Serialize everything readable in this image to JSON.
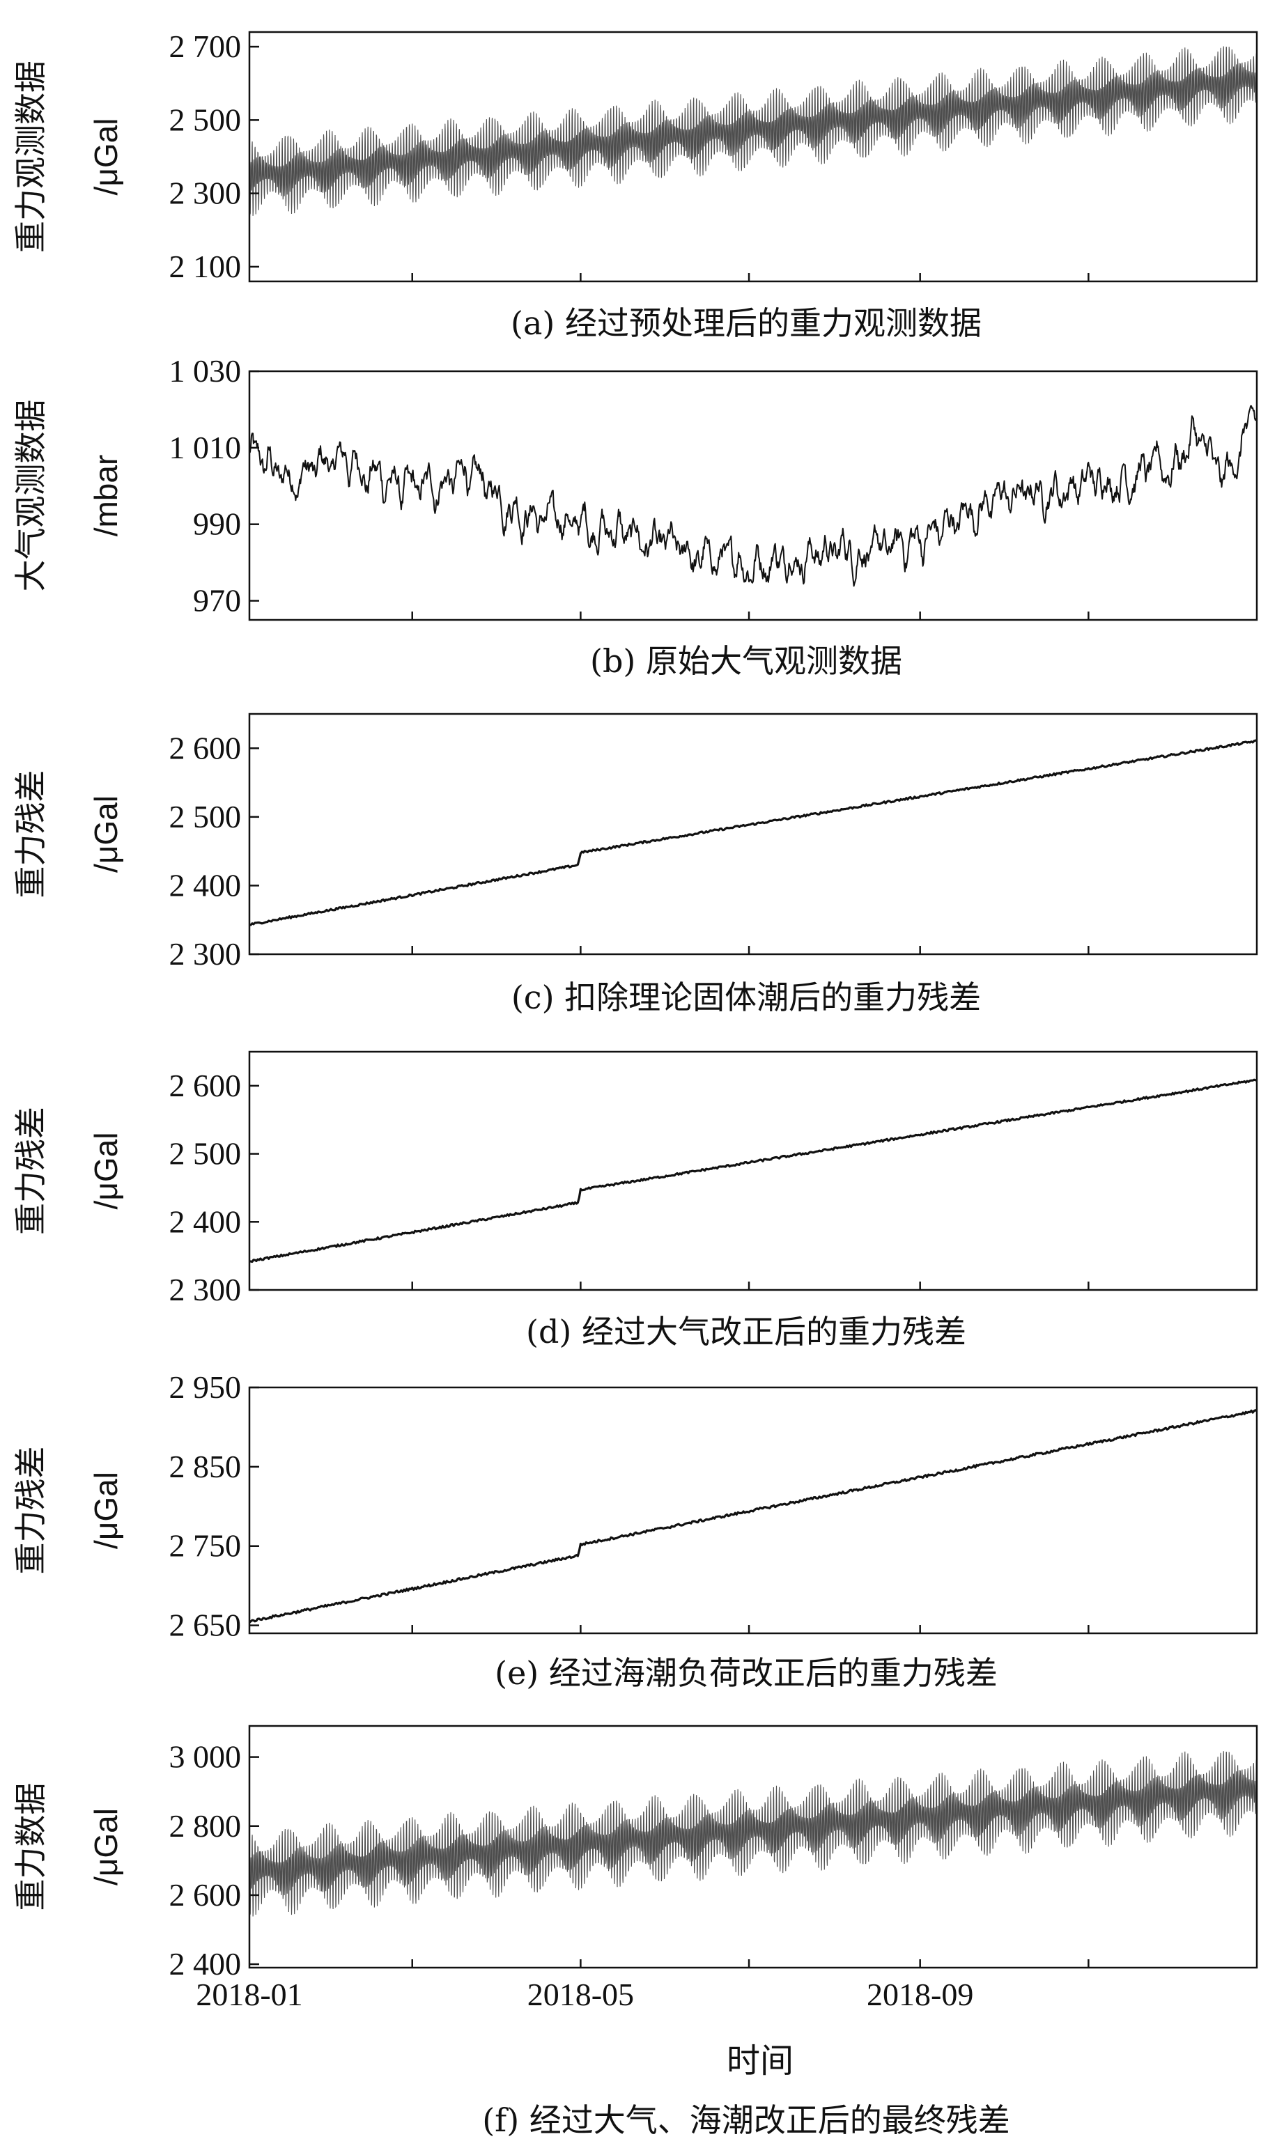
{
  "chart_data": [
    {
      "id": "a",
      "type": "line",
      "caption": "(a) 经过预处理后的重力观测数据",
      "ylabel": "重力观测数据",
      "yunit": "/μGal",
      "ylim": [
        2060,
        2740
      ],
      "yticks": [
        2100,
        2300,
        2500,
        2700
      ],
      "ytick_labels": [
        "2 100",
        "2 300",
        "2 500",
        "2 700"
      ],
      "xlim": [
        "2018-01-01",
        "2019-01-01"
      ],
      "signal": "tidal",
      "series": [
        {
          "x": [
            "2018-01-01",
            "2018-05-01",
            "2018-09-01",
            "2018-12-31"
          ],
          "values": [
            2360,
            2440,
            2530,
            2620
          ]
        }
      ],
      "tidal_amplitude_range": [
        60,
        120
      ],
      "tidal_fortnight_modulation": true
    },
    {
      "id": "b",
      "type": "line",
      "caption": "(b) 原始大气观测数据",
      "ylabel": "大气观测数据",
      "yunit": "/mbar",
      "ylim": [
        965,
        1030
      ],
      "yticks": [
        970,
        990,
        1010,
        1030
      ],
      "ytick_labels": [
        "970",
        "990",
        "1 010",
        "1 030"
      ],
      "xlim": [
        "2018-01-01",
        "2019-01-01"
      ],
      "signal": "noise",
      "series": [
        {
          "x": [
            "2018-01-01",
            "2018-01-15",
            "2018-02-05",
            "2018-03-01",
            "2018-03-20",
            "2018-04-15",
            "2018-05-10",
            "2018-06-10",
            "2018-07-01",
            "2018-07-25",
            "2018-08-20",
            "2018-09-05",
            "2018-09-25",
            "2018-10-20",
            "2018-11-15",
            "2018-12-01",
            "2018-12-10",
            "2018-12-20",
            "2018-12-31"
          ],
          "values": [
            1008,
            1002,
            1007,
            998,
            1003,
            992,
            989,
            981,
            980,
            983,
            983,
            987,
            996,
            999,
            1003,
            1005,
            1014,
            1000,
            1018
          ]
        }
      ],
      "noise_amplitude": 5
    },
    {
      "id": "c",
      "type": "line",
      "caption": "(c) 扣除理论固体潮后的重力残差",
      "ylabel": "重力残差",
      "yunit": "/μGal",
      "ylim": [
        2300,
        2650
      ],
      "yticks": [
        2300,
        2400,
        2500,
        2600
      ],
      "ytick_labels": [
        "2 300",
        "2 400",
        "2 500",
        "2 600"
      ],
      "xlim": [
        "2018-01-01",
        "2019-01-01"
      ],
      "signal": "smooth",
      "series": [
        {
          "x": [
            "2018-01-01",
            "2018-04-30",
            "2018-05-01",
            "2018-12-31"
          ],
          "values": [
            2343,
            2430,
            2448,
            2610
          ]
        }
      ],
      "noise_amplitude": 3
    },
    {
      "id": "d",
      "type": "line",
      "caption": "(d) 经过大气改正后的重力残差",
      "ylabel": "重力残差",
      "yunit": "/μGal",
      "ylim": [
        2300,
        2650
      ],
      "yticks": [
        2300,
        2400,
        2500,
        2600
      ],
      "ytick_labels": [
        "2 300",
        "2 400",
        "2 500",
        "2 600"
      ],
      "xlim": [
        "2018-01-01",
        "2019-01-01"
      ],
      "signal": "smooth",
      "series": [
        {
          "x": [
            "2018-01-01",
            "2018-04-30",
            "2018-05-01",
            "2018-12-31"
          ],
          "values": [
            2342,
            2428,
            2447,
            2608
          ]
        }
      ],
      "noise_amplitude": 3
    },
    {
      "id": "e",
      "type": "line",
      "caption": "(e) 经过海潮负荷改正后的重力残差",
      "ylabel": "重力残差",
      "yunit": "/μGal",
      "ylim": [
        2640,
        2950
      ],
      "yticks": [
        2650,
        2750,
        2850,
        2950
      ],
      "ytick_labels": [
        "2 650",
        "2 750",
        "2 850",
        "2 950"
      ],
      "xlim": [
        "2018-01-01",
        "2019-01-01"
      ],
      "signal": "smooth",
      "series": [
        {
          "x": [
            "2018-01-01",
            "2018-04-30",
            "2018-05-01",
            "2018-12-31"
          ],
          "values": [
            2655,
            2738,
            2752,
            2920
          ]
        }
      ],
      "noise_amplitude": 3
    },
    {
      "id": "f",
      "type": "line",
      "caption": "(f) 经过大气、海潮改正后的最终残差",
      "ylabel": "重力数据",
      "yunit": "/μGal",
      "ylim": [
        2390,
        3090
      ],
      "yticks": [
        2400,
        2600,
        2800,
        3000
      ],
      "ytick_labels": [
        "2 400",
        "2 600",
        "2 800",
        "3 000"
      ],
      "xlim": [
        "2018-01-01",
        "2019-01-01"
      ],
      "signal": "tidal",
      "series": [
        {
          "x": [
            "2018-01-01",
            "2018-05-01",
            "2018-09-01",
            "2018-12-31"
          ],
          "values": [
            2680,
            2760,
            2840,
            2920
          ]
        }
      ],
      "tidal_amplitude_range": [
        70,
        140
      ],
      "tidal_fortnight_modulation": true,
      "xticks": [
        "2018-01-01",
        "2018-05-01",
        "2018-09-01"
      ],
      "xtick_labels": [
        "2018-01",
        "2018-05",
        "2018-09"
      ],
      "xlabel": "时间"
    }
  ],
  "minor_xticks": [
    "2018-03-01",
    "2018-05-01",
    "2018-07-01",
    "2018-09-01",
    "2018-11-01"
  ]
}
